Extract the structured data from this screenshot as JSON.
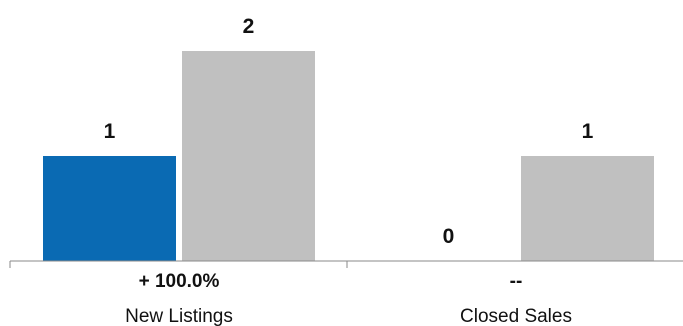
{
  "chart_data": {
    "type": "bar",
    "categories": [
      "New Listings",
      "Closed Sales"
    ],
    "series": [
      {
        "values": [
          1,
          0
        ],
        "color": "#0a6ab3"
      },
      {
        "values": [
          2,
          1
        ],
        "color": "#c0c0c0"
      }
    ],
    "value_labels": [
      [
        "1",
        "0"
      ],
      [
        "2",
        "1"
      ]
    ],
    "changes": [
      "+ 100.0%",
      "--"
    ],
    "ylim": [
      0,
      2
    ],
    "grid": false,
    "legend": "none"
  }
}
